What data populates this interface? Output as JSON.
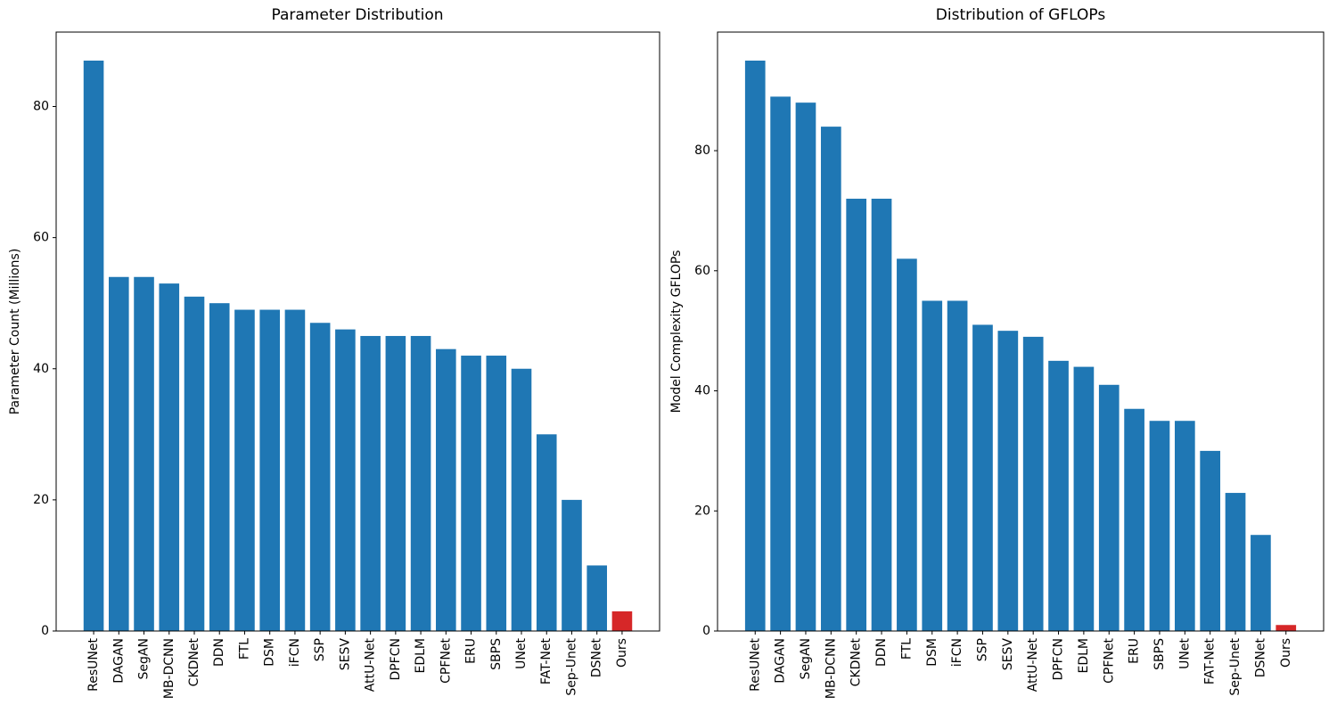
{
  "figure": {
    "background": "#ffffff",
    "text_color": "#000000"
  },
  "chart_data": [
    {
      "type": "bar",
      "title": "Parameter Distribution",
      "xlabel": "",
      "ylabel": "Parameter Count (Millions)",
      "categories": [
        "ResUNet",
        "DAGAN",
        "SegAN",
        "MB-DCNN",
        "CKDNet",
        "DDN",
        "FTL",
        "DSM",
        "iFCN",
        "SSP",
        "SESV",
        "AttU-Net",
        "DPFCN",
        "EDLM",
        "CPFNet",
        "ERU",
        "SBPS",
        "UNet",
        "FAT-Net",
        "Sep-Unet",
        "DSNet",
        "Ours"
      ],
      "values": [
        87,
        54,
        54,
        53,
        51,
        50,
        49,
        49,
        49,
        47,
        46,
        45,
        45,
        45,
        43,
        42,
        42,
        40,
        30,
        20,
        10,
        3
      ],
      "bar_color": "#1f77b4",
      "highlight_category": "Ours",
      "highlight_color": "#d62728",
      "ylim": [
        0,
        91.35
      ],
      "yticks": [
        0,
        20,
        40,
        60,
        80
      ],
      "xtick_rotation": 90,
      "grid": false,
      "legend": null
    },
    {
      "type": "bar",
      "title": "Distribution of GFLOPs",
      "xlabel": "",
      "ylabel": "Model Complexity GFLOPs",
      "categories": [
        "ResUNet",
        "DAGAN",
        "SegAN",
        "MB-DCNN",
        "CKDNet",
        "DDN",
        "FTL",
        "DSM",
        "iFCN",
        "SSP",
        "SESV",
        "AttU-Net",
        "DPFCN",
        "EDLM",
        "CPFNet",
        "ERU",
        "SBPS",
        "UNet",
        "FAT-Net",
        "Sep-Unet",
        "DSNet",
        "Ours"
      ],
      "values": [
        95,
        89,
        88,
        84,
        72,
        72,
        62,
        55,
        55,
        51,
        50,
        49,
        45,
        44,
        41,
        37,
        35,
        35,
        30,
        23,
        16,
        1
      ],
      "bar_color": "#1f77b4",
      "highlight_category": "Ours",
      "highlight_color": "#d62728",
      "ylim": [
        0,
        99.75
      ],
      "yticks": [
        0,
        20,
        40,
        60,
        80
      ],
      "xtick_rotation": 90,
      "grid": false,
      "legend": null
    }
  ]
}
